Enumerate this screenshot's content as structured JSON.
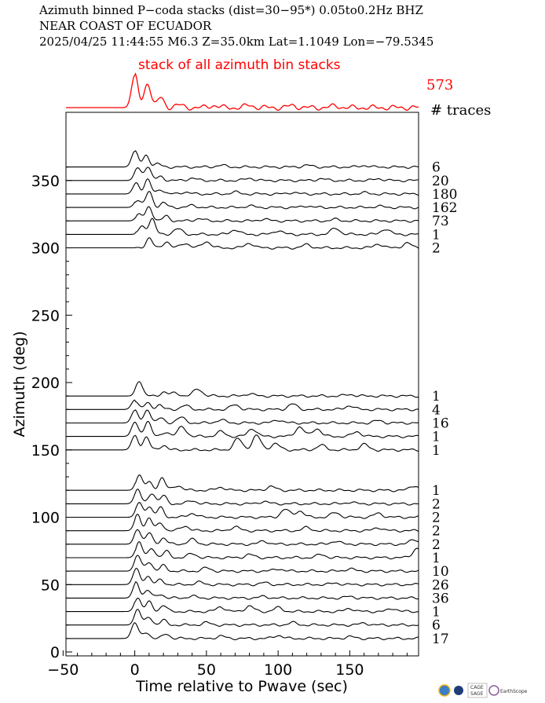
{
  "header": {
    "line1": "Azimuth binned P−coda stacks (dist=30−95*)  0.05to0.2Hz  BHZ",
    "line2": "NEAR COAST OF ECUADOR",
    "line3": "2025/04/25  11:44:55  M6.3  Z=35.0km Lat=1.1049 Lon=−79.5345"
  },
  "logos": {
    "cage_sage_line1": "CAGE",
    "cage_sage_line2": "SAGE",
    "earthscope": "EarthScope"
  },
  "chart_data": {
    "type": "line",
    "title": "",
    "xlabel": "Time relative to Pwave (sec)",
    "ylabel": "Azimuth (deg)",
    "xlim": [
      -48,
      198
    ],
    "ylim": [
      0,
      390
    ],
    "xticks": [
      -50,
      0,
      50,
      100,
      150
    ],
    "xtick_labels": [
      "−50",
      "0",
      "50",
      "100",
      "150"
    ],
    "yticks": [
      0,
      50,
      100,
      150,
      200,
      250,
      300,
      350
    ],
    "ytick_labels": [
      "0",
      "50",
      "100",
      "150",
      "200",
      "250",
      "300",
      "350"
    ],
    "grid": false,
    "colors": {
      "summary": "#ff0000",
      "traces": "#000000"
    },
    "summary_stack": {
      "label": "stack of all azimuth bin stacks",
      "count": "573",
      "peaks": [
        [
          0,
          1.0
        ],
        [
          9,
          0.78
        ],
        [
          18,
          0.3
        ],
        [
          30,
          0.08
        ],
        [
          55,
          0.07
        ],
        [
          80,
          0.07
        ],
        [
          110,
          0.06
        ],
        [
          140,
          0.05
        ]
      ]
    },
    "count_header": "# traces",
    "series": [
      {
        "azimuth": 360,
        "count": "6",
        "peaks": [
          [
            0,
            1.0
          ],
          [
            8,
            0.75
          ],
          [
            16,
            0.2
          ],
          [
            60,
            0.12
          ],
          [
            120,
            0.12
          ],
          [
            160,
            0.1
          ]
        ]
      },
      {
        "azimuth": 350,
        "count": "20",
        "peaks": [
          [
            2,
            0.8
          ],
          [
            9,
            0.9
          ],
          [
            18,
            0.25
          ],
          [
            40,
            0.15
          ],
          [
            80,
            0.15
          ],
          [
            130,
            0.12
          ],
          [
            170,
            0.12
          ]
        ]
      },
      {
        "azimuth": 340,
        "count": "180",
        "peaks": [
          [
            1,
            0.7
          ],
          [
            9,
            0.9
          ],
          [
            18,
            0.3
          ],
          [
            35,
            0.12
          ],
          [
            70,
            0.12
          ],
          [
            110,
            0.1
          ],
          [
            160,
            0.08
          ]
        ]
      },
      {
        "azimuth": 330,
        "count": "162",
        "peaks": [
          [
            2,
            0.5
          ],
          [
            10,
            1.0
          ],
          [
            20,
            0.3
          ],
          [
            40,
            0.12
          ],
          [
            80,
            0.1
          ],
          [
            120,
            0.1
          ],
          [
            170,
            0.08
          ]
        ]
      },
      {
        "azimuth": 320,
        "count": "73",
        "peaks": [
          [
            3,
            0.4
          ],
          [
            10,
            0.9
          ],
          [
            22,
            0.3
          ],
          [
            45,
            0.15
          ],
          [
            90,
            0.12
          ],
          [
            140,
            0.1
          ]
        ]
      },
      {
        "azimuth": 310,
        "count": "1",
        "peaks": [
          [
            5,
            0.5
          ],
          [
            12,
            1.0
          ],
          [
            30,
            0.35
          ],
          [
            70,
            0.3
          ],
          [
            100,
            0.25
          ],
          [
            140,
            0.4
          ],
          [
            175,
            0.35
          ]
        ]
      },
      {
        "azimuth": 300,
        "count": "2",
        "peaks": [
          [
            10,
            0.6
          ],
          [
            22,
            0.4
          ],
          [
            35,
            0.3
          ],
          [
            50,
            0.4
          ],
          [
            80,
            0.3
          ],
          [
            120,
            0.2
          ],
          [
            170,
            0.25
          ],
          [
            190,
            0.3
          ]
        ]
      },
      {
        "azimuth": 190,
        "count": "1",
        "peaks": [
          [
            3,
            1.0
          ],
          [
            20,
            0.25
          ],
          [
            28,
            0.2
          ],
          [
            44,
            0.45
          ],
          [
            80,
            0.15
          ],
          [
            150,
            0.1
          ]
        ]
      },
      {
        "azimuth": 180,
        "count": "4",
        "peaks": [
          [
            0,
            0.6
          ],
          [
            9,
            0.4
          ],
          [
            17,
            0.3
          ],
          [
            35,
            0.25
          ],
          [
            70,
            0.3
          ],
          [
            110,
            0.35
          ],
          [
            150,
            0.25
          ]
        ]
      },
      {
        "azimuth": 170,
        "count": "16",
        "peaks": [
          [
            0,
            0.8
          ],
          [
            9,
            0.85
          ],
          [
            18,
            0.3
          ],
          [
            32,
            0.35
          ],
          [
            60,
            0.2
          ],
          [
            100,
            0.2
          ],
          [
            170,
            0.15
          ]
        ]
      },
      {
        "azimuth": 160,
        "count": "1",
        "peaks": [
          [
            0,
            0.9
          ],
          [
            9,
            1.0
          ],
          [
            22,
            0.3
          ],
          [
            33,
            0.6
          ],
          [
            60,
            0.3
          ],
          [
            82,
            0.5
          ],
          [
            115,
            0.6
          ],
          [
            127,
            0.5
          ],
          [
            155,
            0.3
          ]
        ]
      },
      {
        "azimuth": 150,
        "count": "1",
        "peaks": [
          [
            0,
            0.9
          ],
          [
            8,
            0.8
          ],
          [
            20,
            0.3
          ],
          [
            72,
            0.7
          ],
          [
            85,
            0.9
          ],
          [
            98,
            0.4
          ],
          [
            130,
            0.3
          ],
          [
            160,
            0.35
          ]
        ]
      },
      {
        "azimuth": 120,
        "count": "1",
        "peaks": [
          [
            3,
            1.0
          ],
          [
            10,
            0.5
          ],
          [
            19,
            0.8
          ],
          [
            30,
            0.3
          ],
          [
            60,
            0.2
          ],
          [
            95,
            0.25
          ],
          [
            195,
            0.3
          ]
        ]
      },
      {
        "azimuth": 110,
        "count": "2",
        "peaks": [
          [
            2,
            0.9
          ],
          [
            12,
            0.7
          ],
          [
            20,
            0.5
          ],
          [
            40,
            0.2
          ],
          [
            90,
            0.15
          ],
          [
            150,
            0.1
          ]
        ]
      },
      {
        "azimuth": 100,
        "count": "2",
        "peaks": [
          [
            3,
            0.9
          ],
          [
            10,
            0.7
          ],
          [
            18,
            0.6
          ],
          [
            40,
            0.25
          ],
          [
            105,
            0.5
          ],
          [
            115,
            0.4
          ],
          [
            140,
            0.3
          ],
          [
            170,
            0.25
          ]
        ]
      },
      {
        "azimuth": 90,
        "count": "2",
        "peaks": [
          [
            2,
            1.0
          ],
          [
            10,
            0.8
          ],
          [
            18,
            0.5
          ],
          [
            35,
            0.3
          ],
          [
            70,
            0.25
          ],
          [
            120,
            0.2
          ],
          [
            170,
            0.2
          ]
        ]
      },
      {
        "azimuth": 80,
        "count": "2",
        "peaks": [
          [
            2,
            1.0
          ],
          [
            10,
            0.7
          ],
          [
            20,
            0.4
          ],
          [
            40,
            0.3
          ],
          [
            90,
            0.2
          ],
          [
            140,
            0.2
          ],
          [
            195,
            0.3
          ]
        ]
      },
      {
        "azimuth": 70,
        "count": "1",
        "peaks": [
          [
            3,
            1.0
          ],
          [
            12,
            0.6
          ],
          [
            22,
            0.4
          ],
          [
            40,
            0.25
          ],
          [
            80,
            0.2
          ],
          [
            130,
            0.2
          ],
          [
            197,
            0.6
          ]
        ]
      },
      {
        "azimuth": 60,
        "count": "10",
        "peaks": [
          [
            2,
            1.0
          ],
          [
            10,
            0.6
          ],
          [
            20,
            0.35
          ],
          [
            50,
            0.2
          ],
          [
            100,
            0.15
          ],
          [
            150,
            0.15
          ]
        ]
      },
      {
        "azimuth": 50,
        "count": "26",
        "peaks": [
          [
            1,
            1.0
          ],
          [
            9,
            0.55
          ],
          [
            18,
            0.3
          ],
          [
            45,
            0.15
          ],
          [
            90,
            0.12
          ],
          [
            140,
            0.1
          ]
        ]
      },
      {
        "azimuth": 40,
        "count": "36",
        "peaks": [
          [
            1,
            1.0
          ],
          [
            9,
            0.5
          ],
          [
            18,
            0.25
          ],
          [
            40,
            0.12
          ],
          [
            90,
            0.1
          ],
          [
            150,
            0.1
          ]
        ]
      },
      {
        "azimuth": 30,
        "count": "1",
        "peaks": [
          [
            2,
            0.9
          ],
          [
            10,
            0.6
          ],
          [
            20,
            0.4
          ],
          [
            60,
            0.3
          ],
          [
            80,
            0.35
          ],
          [
            100,
            0.25
          ],
          [
            150,
            0.2
          ],
          [
            180,
            0.2
          ]
        ]
      },
      {
        "azimuth": 20,
        "count": "6",
        "peaks": [
          [
            2,
            1.0
          ],
          [
            10,
            0.5
          ],
          [
            20,
            0.3
          ],
          [
            50,
            0.15
          ],
          [
            110,
            0.15
          ],
          [
            160,
            0.12
          ]
        ]
      },
      {
        "azimuth": 10,
        "count": "17",
        "peaks": [
          [
            0,
            1.0
          ],
          [
            8,
            0.4
          ],
          [
            22,
            0.3
          ],
          [
            60,
            0.15
          ],
          [
            100,
            0.2
          ],
          [
            150,
            0.12
          ]
        ]
      }
    ]
  }
}
